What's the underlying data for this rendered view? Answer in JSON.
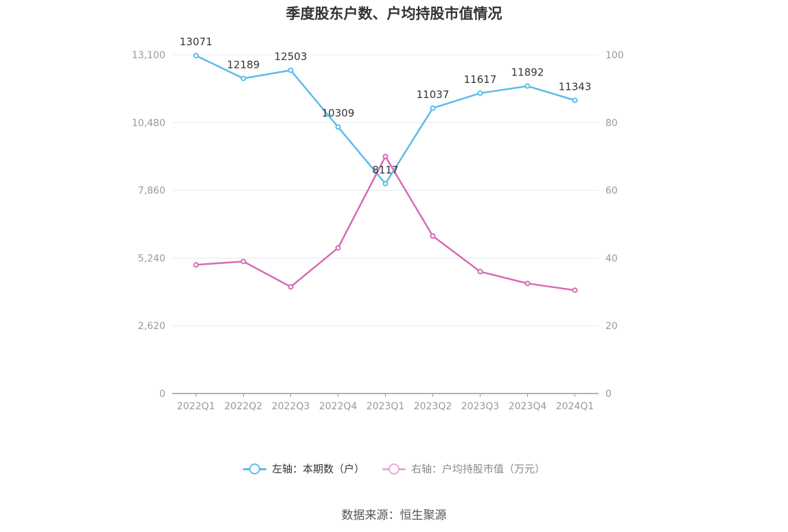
{
  "title": "季度股东户数、户均持股市值情况",
  "source": "数据来源：恒生聚源",
  "colors": {
    "left_series": "#5bbbeb",
    "right_series": "#d66bb3",
    "grid": "#e3e8f0",
    "axis": "#999999"
  },
  "legend": {
    "left": "左轴：本期数（户）",
    "right": "右轴：户均持股市值（万元）"
  },
  "chart_data": {
    "type": "line",
    "categories": [
      "2022Q1",
      "2022Q2",
      "2022Q3",
      "2022Q4",
      "2023Q1",
      "2023Q2",
      "2023Q3",
      "2023Q4",
      "2024Q1"
    ],
    "left_axis": {
      "min": 0,
      "max": 13100,
      "ticks": [
        "0",
        "2,620",
        "5,240",
        "7,860",
        "10,480",
        "13,100"
      ]
    },
    "right_axis": {
      "min": 0,
      "max": 100,
      "ticks": [
        "0",
        "20",
        "40",
        "60",
        "80",
        "100"
      ]
    },
    "grid": true,
    "legend_position": "bottom",
    "series": [
      {
        "name": "左轴：本期数（户）",
        "axis": "left",
        "values": [
          13071,
          12189,
          12503,
          10309,
          8117,
          11037,
          11617,
          11892,
          11343
        ],
        "labels": [
          "13071",
          "12189",
          "12503",
          "10309",
          "8117",
          "11037",
          "11617",
          "11892",
          "11343"
        ]
      },
      {
        "name": "右轴：户均持股市值（万元）",
        "axis": "right",
        "values": [
          38.0,
          39.0,
          31.5,
          43.0,
          70.0,
          46.5,
          36.0,
          32.5,
          30.5
        ]
      }
    ]
  }
}
